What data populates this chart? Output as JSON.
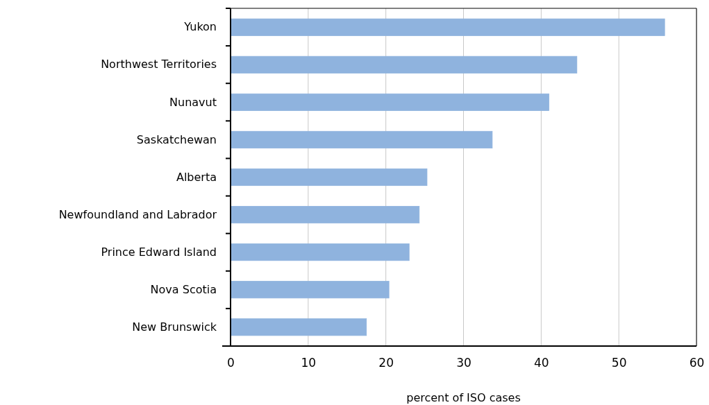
{
  "chart_data": {
    "type": "bar",
    "orientation": "horizontal",
    "xlabel": "percent of ISO cases",
    "categories": [
      "Yukon",
      "Northwest Territories",
      "Nunavut",
      "Saskatchewan",
      "Alberta",
      "Newfoundland and Labrador",
      "Prince Edward Island",
      "Nova Scotia",
      "New Brunswick"
    ],
    "values": [
      55.9,
      44.6,
      41.0,
      33.7,
      25.3,
      24.3,
      23.0,
      20.4,
      17.5
    ],
    "color": "#8fb3de",
    "xlim": [
      0,
      60
    ],
    "xticks": [
      0,
      10,
      20,
      30,
      40,
      50,
      60
    ],
    "grid": "x"
  }
}
